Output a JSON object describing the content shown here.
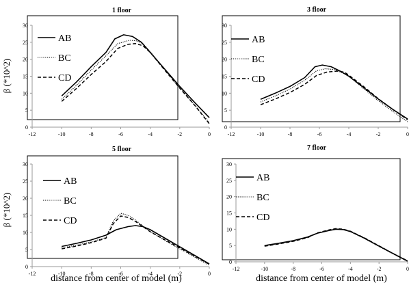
{
  "figure": {
    "ylabel": "β (*10^2)",
    "xlabel": "distance from center of model (m)"
  },
  "chart_data": [
    {
      "type": "line",
      "title": "1 floor",
      "ylabel": "β (*10^2)",
      "xlabel": "",
      "xlim": [
        -12,
        0
      ],
      "ylim": [
        0,
        30
      ],
      "xticks": [
        -12,
        -10,
        -8,
        -6,
        -4,
        -2,
        0
      ],
      "yticks": [
        0,
        5,
        10,
        15,
        20,
        25,
        30
      ],
      "legend": "top-left",
      "series": [
        {
          "name": "AB",
          "style": "solid",
          "points": [
            [
              -10,
              9.2
            ],
            [
              -9,
              13.3
            ],
            [
              -8,
              17.8
            ],
            [
              -7,
              22.0
            ],
            [
              -6.4,
              26.0
            ],
            [
              -5.8,
              27.2
            ],
            [
              -5.2,
              26.7
            ],
            [
              -4.6,
              25.0
            ],
            [
              -4,
              22.0
            ],
            [
              -3,
              17.0
            ],
            [
              -2,
              12.0
            ],
            [
              -1,
              7.3
            ],
            [
              0,
              2.8
            ]
          ]
        },
        {
          "name": "BC",
          "style": "dotted",
          "points": [
            [
              -10,
              8.2
            ],
            [
              -9,
              12.3
            ],
            [
              -8,
              16.8
            ],
            [
              -7,
              21.0
            ],
            [
              -6.2,
              24.6
            ],
            [
              -5.4,
              25.6
            ],
            [
              -4.9,
              25.4
            ],
            [
              -4.5,
              24.6
            ],
            [
              -4,
              22.2
            ],
            [
              -3,
              16.8
            ],
            [
              -2,
              11.6
            ],
            [
              -1,
              6.6
            ],
            [
              0,
              1.3
            ]
          ]
        },
        {
          "name": "CD",
          "style": "dashed",
          "points": [
            [
              -10,
              7.6
            ],
            [
              -9,
              11.4
            ],
            [
              -8,
              15.5
            ],
            [
              -7,
              19.3
            ],
            [
              -6.2,
              23.2
            ],
            [
              -5.5,
              24.4
            ],
            [
              -5,
              24.6
            ],
            [
              -4.5,
              24.0
            ],
            [
              -4,
              22.0
            ],
            [
              -3,
              16.7
            ],
            [
              -2,
              11.5
            ],
            [
              -1,
              6.5
            ],
            [
              0,
              1.0
            ]
          ]
        }
      ]
    },
    {
      "type": "line",
      "title": "3 floor",
      "ylabel": "",
      "xlabel": "",
      "xlim": [
        -12,
        0
      ],
      "ylim": [
        0,
        30
      ],
      "xticks": [
        -12,
        -10,
        -8,
        -6,
        -4,
        -2,
        0
      ],
      "yticks": [
        0,
        5,
        10,
        15,
        20,
        25,
        30
      ],
      "legend": "top-left",
      "series": [
        {
          "name": "AB",
          "style": "solid",
          "points": [
            [
              -10,
              8.2
            ],
            [
              -9,
              10.0
            ],
            [
              -8,
              12.0
            ],
            [
              -7,
              14.6
            ],
            [
              -6.3,
              17.8
            ],
            [
              -5.8,
              18.3
            ],
            [
              -5.2,
              17.8
            ],
            [
              -4.5,
              16.3
            ],
            [
              -4,
              15.0
            ],
            [
              -3,
              11.7
            ],
            [
              -2,
              8.3
            ],
            [
              -1,
              5.2
            ],
            [
              0,
              2.4
            ]
          ]
        },
        {
          "name": "BC",
          "style": "dotted",
          "points": [
            [
              -10,
              7.4
            ],
            [
              -9,
              9.2
            ],
            [
              -8,
              11.2
            ],
            [
              -7,
              13.8
            ],
            [
              -6.2,
              16.6
            ],
            [
              -5.6,
              17.2
            ],
            [
              -5,
              17.0
            ],
            [
              -4.5,
              16.1
            ],
            [
              -4,
              15.0
            ],
            [
              -3,
              11.4
            ],
            [
              -2,
              7.8
            ],
            [
              -1,
              4.6
            ],
            [
              0,
              1.6
            ]
          ]
        },
        {
          "name": "CD",
          "style": "dashed",
          "points": [
            [
              -10,
              6.6
            ],
            [
              -9,
              8.3
            ],
            [
              -8,
              10.2
            ],
            [
              -7,
              12.6
            ],
            [
              -6.2,
              15.2
            ],
            [
              -5.5,
              16.2
            ],
            [
              -4.8,
              16.5
            ],
            [
              -4.3,
              16.2
            ],
            [
              -4,
              15.3
            ],
            [
              -3,
              12.0
            ],
            [
              -2,
              8.4
            ],
            [
              -1,
              5.2
            ],
            [
              0,
              2.2
            ]
          ]
        }
      ]
    },
    {
      "type": "line",
      "title": "5 floor",
      "ylabel": "β (*10^2)",
      "xlabel": "distance from center of model (m)",
      "xlim": [
        -12,
        0
      ],
      "ylim": [
        0,
        30
      ],
      "xticks": [
        -12,
        -10,
        -8,
        -6,
        -4,
        -2,
        0
      ],
      "yticks": [
        0,
        5,
        10,
        15,
        20,
        25,
        30
      ],
      "legend": "top-left",
      "series": [
        {
          "name": "AB",
          "style": "solid",
          "points": [
            [
              -10,
              5.9
            ],
            [
              -9,
              6.8
            ],
            [
              -8,
              7.8
            ],
            [
              -7,
              9.2
            ],
            [
              -6.3,
              10.8
            ],
            [
              -5.5,
              11.7
            ],
            [
              -5,
              12.0
            ],
            [
              -4.5,
              11.7
            ],
            [
              -4,
              10.8
            ],
            [
              -3,
              8.3
            ],
            [
              -2,
              5.8
            ],
            [
              -1,
              3.3
            ],
            [
              0,
              0.8
            ]
          ]
        },
        {
          "name": "BC",
          "style": "dotted",
          "points": [
            [
              -10,
              5.5
            ],
            [
              -9,
              6.3
            ],
            [
              -8,
              7.2
            ],
            [
              -7,
              8.5
            ],
            [
              -6.5,
              13.4
            ],
            [
              -6,
              15.6
            ],
            [
              -5.5,
              15.0
            ],
            [
              -5,
              13.6
            ],
            [
              -4,
              10.2
            ],
            [
              -3,
              7.6
            ],
            [
              -2,
              5.2
            ],
            [
              -1,
              2.8
            ],
            [
              0,
              0.4
            ]
          ]
        },
        {
          "name": "CD",
          "style": "dashed",
          "points": [
            [
              -10,
              5.2
            ],
            [
              -9,
              6.0
            ],
            [
              -8,
              7.0
            ],
            [
              -7,
              8.3
            ],
            [
              -6.5,
              12.6
            ],
            [
              -6,
              14.8
            ],
            [
              -5.5,
              14.4
            ],
            [
              -5,
              13.2
            ],
            [
              -4,
              10.2
            ],
            [
              -3,
              7.8
            ],
            [
              -2,
              5.5
            ],
            [
              -1,
              3.1
            ],
            [
              0,
              0.7
            ]
          ]
        }
      ]
    },
    {
      "type": "line",
      "title": "7 floor",
      "ylabel": "",
      "xlabel": "distance from center of model (m)",
      "xlim": [
        -12,
        0
      ],
      "ylim": [
        0,
        30
      ],
      "xticks": [
        -12,
        -10,
        -8,
        -6,
        -4,
        -2,
        0
      ],
      "yticks": [
        0,
        5,
        10,
        15,
        20,
        25,
        30
      ],
      "legend": "top-left",
      "series": [
        {
          "name": "AB",
          "style": "solid",
          "points": [
            [
              -10,
              5.0
            ],
            [
              -9,
              5.7
            ],
            [
              -8,
              6.5
            ],
            [
              -7,
              7.6
            ],
            [
              -6.3,
              8.8
            ],
            [
              -5.5,
              9.6
            ],
            [
              -5,
              10.0
            ],
            [
              -4.5,
              9.9
            ],
            [
              -4,
              9.3
            ],
            [
              -3,
              7.2
            ],
            [
              -2,
              4.8
            ],
            [
              -1,
              2.5
            ],
            [
              0,
              0.2
            ]
          ]
        },
        {
          "name": "BC",
          "style": "dotted",
          "points": [
            [
              -10,
              4.9
            ],
            [
              -9,
              5.6
            ],
            [
              -8,
              6.4
            ],
            [
              -7,
              7.5
            ],
            [
              -6.3,
              8.8
            ],
            [
              -5.5,
              9.7
            ],
            [
              -5,
              10.1
            ],
            [
              -4.5,
              9.9
            ],
            [
              -4,
              9.3
            ],
            [
              -3,
              7.1
            ],
            [
              -2,
              4.7
            ],
            [
              -1,
              2.4
            ],
            [
              0,
              0.1
            ]
          ]
        },
        {
          "name": "CD",
          "style": "dashed",
          "points": [
            [
              -10,
              4.8
            ],
            [
              -9,
              5.5
            ],
            [
              -8,
              6.3
            ],
            [
              -7,
              7.4
            ],
            [
              -6.3,
              8.9
            ],
            [
              -5.5,
              9.8
            ],
            [
              -5,
              10.2
            ],
            [
              -4.5,
              10.0
            ],
            [
              -4,
              9.4
            ],
            [
              -3,
              7.3
            ],
            [
              -2,
              4.9
            ],
            [
              -1,
              2.5
            ],
            [
              0,
              0.3
            ]
          ]
        }
      ]
    }
  ]
}
